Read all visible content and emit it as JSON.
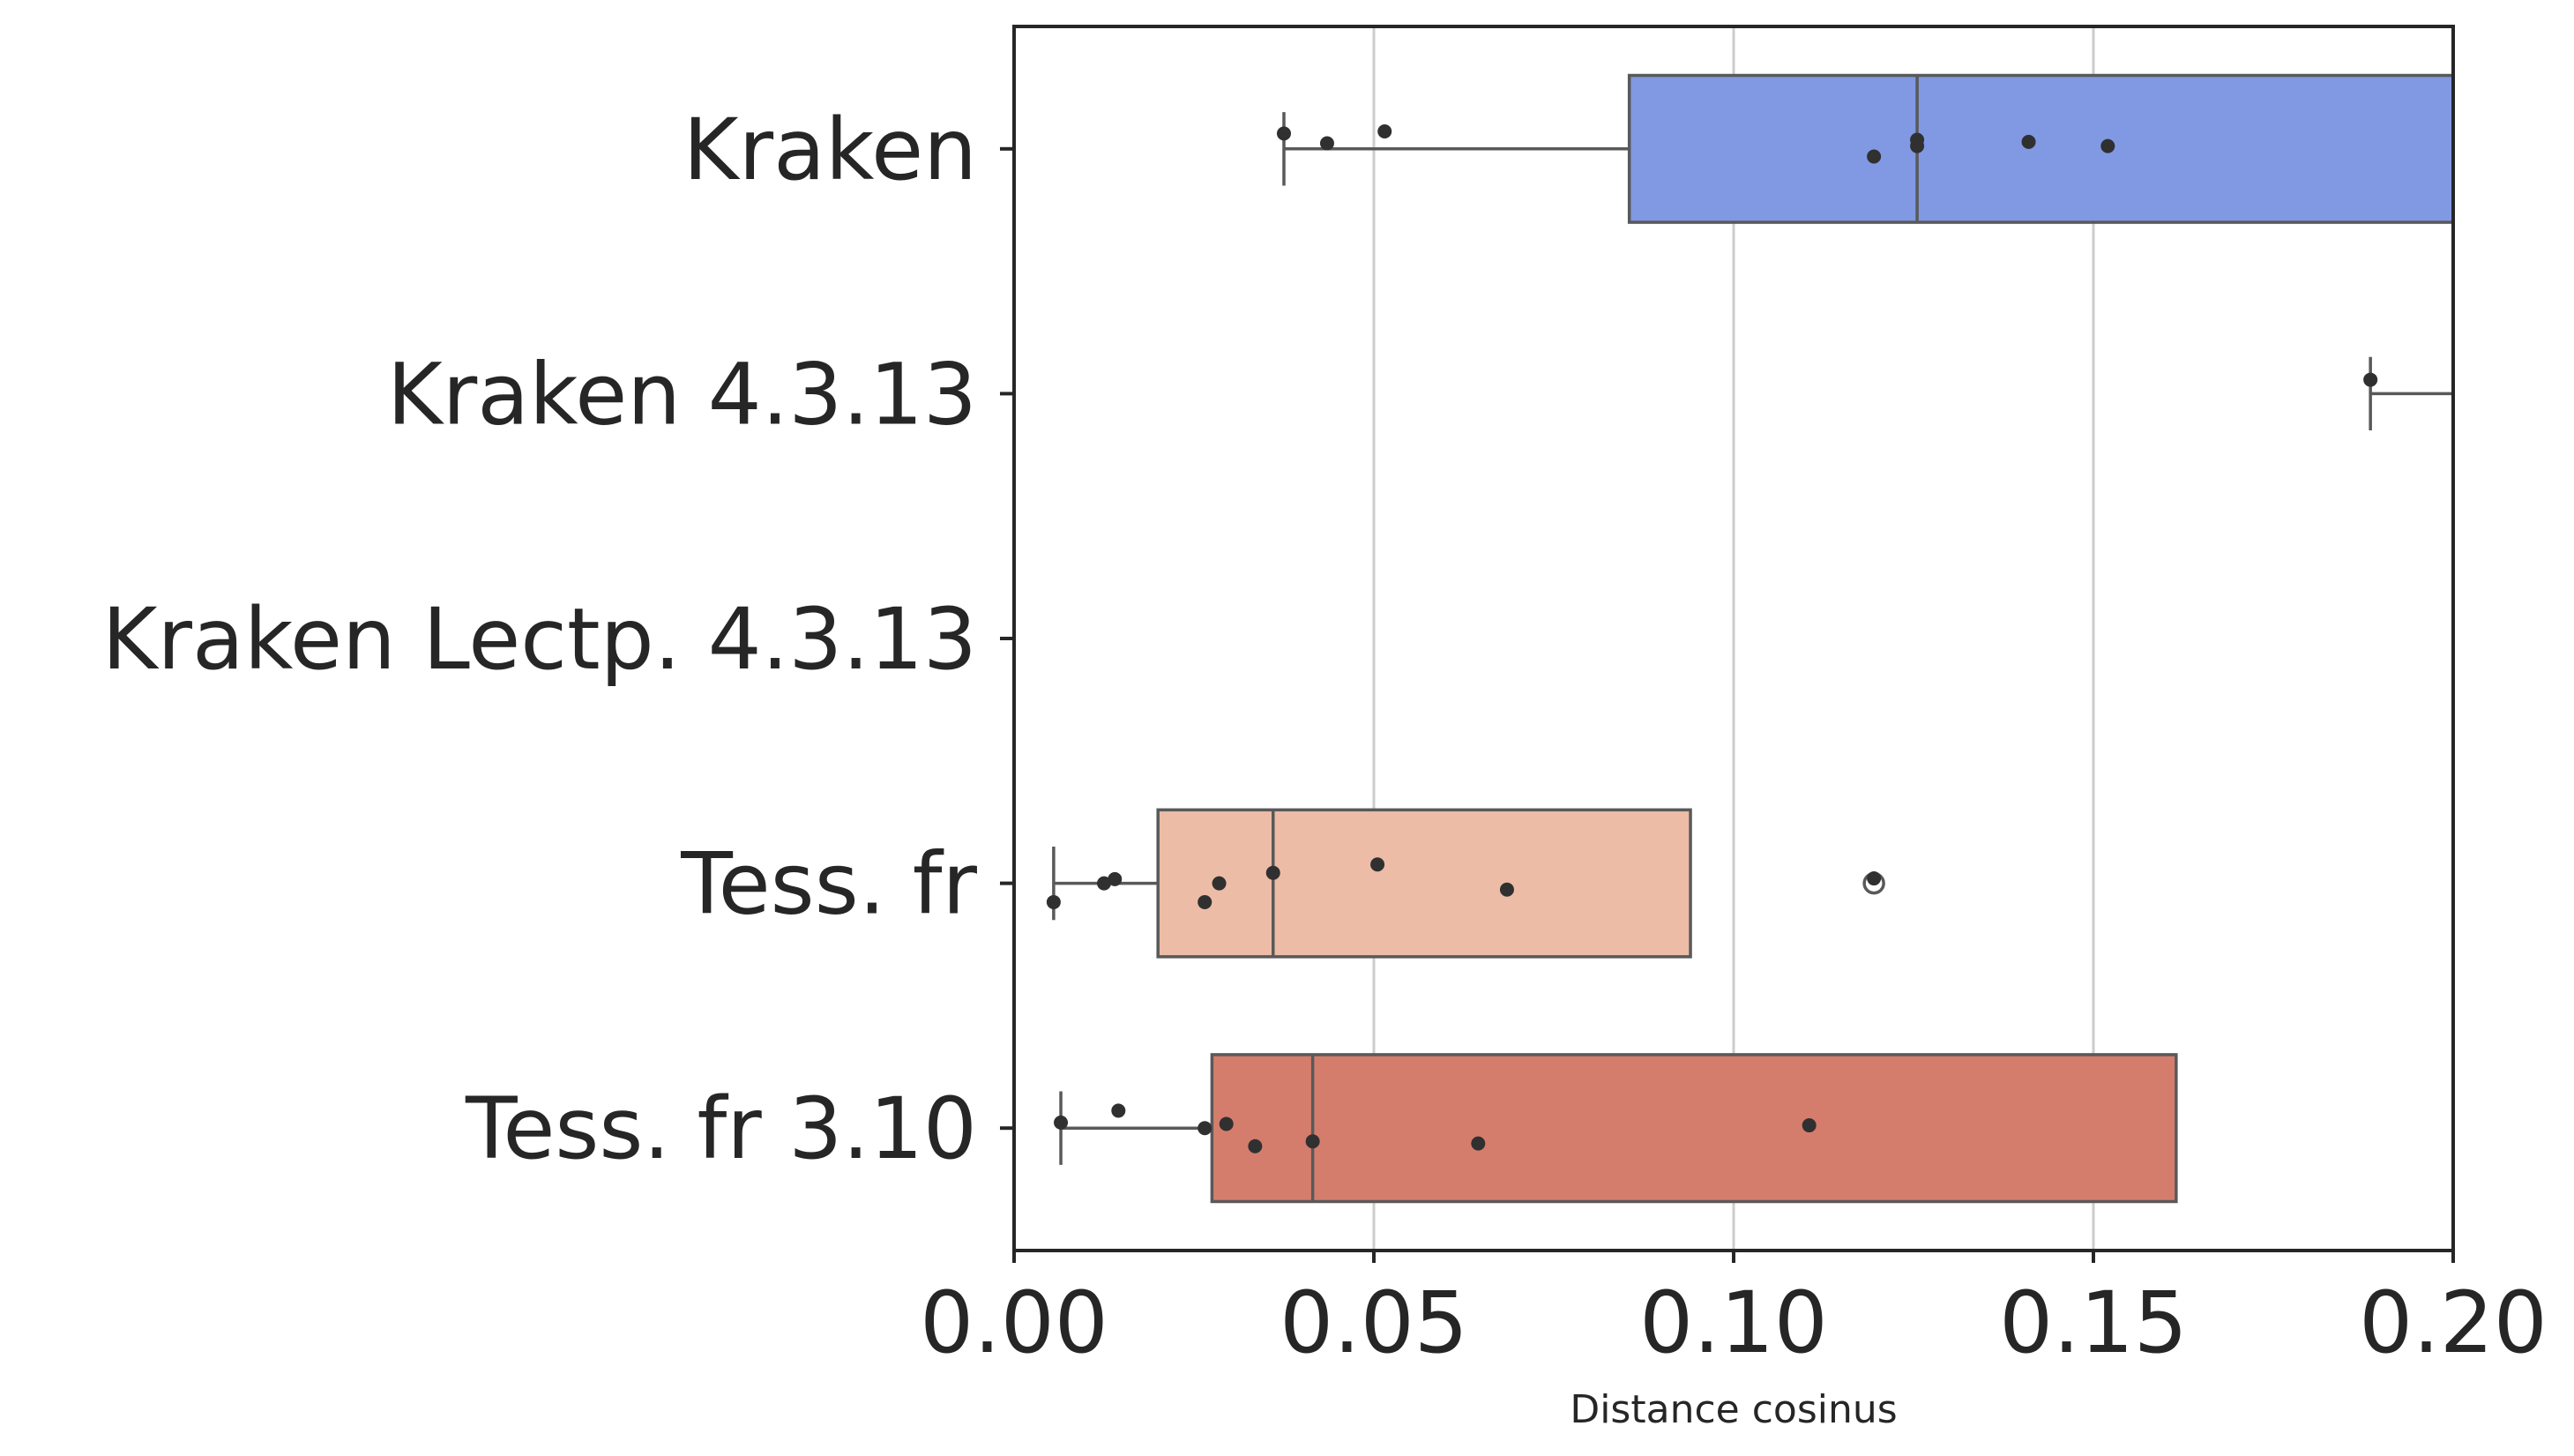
{
  "chart_data": {
    "type": "box",
    "orientation": "horizontal",
    "xlabel": "Distance cosinus",
    "ylabel": "",
    "xlim": [
      0,
      0.2
    ],
    "xticks": [
      0,
      0.05,
      0.1,
      0.15,
      0.2
    ],
    "xtick_labels": [
      "0.00",
      "0.05",
      "0.10",
      "0.15",
      "0.20"
    ],
    "grid": "vertical",
    "categories": [
      "Kraken",
      "Kraken 4.3.13",
      "Kraken Lectp. 4.3.13",
      "Tess. fr",
      "Tess. fr 3.10"
    ],
    "boxes": [
      {
        "category": "Kraken",
        "color": "#8099e2",
        "whisker_low": 0.0375,
        "q1": 0.0855,
        "median": 0.1255,
        "q3": 0.205,
        "points": [
          {
            "x": 0.0375,
            "j": -0.22
          },
          {
            "x": 0.0435,
            "j": -0.08
          },
          {
            "x": 0.0515,
            "j": -0.25
          },
          {
            "x": 0.1195,
            "j": 0.11
          },
          {
            "x": 0.1255,
            "j": -0.13
          },
          {
            "x": 0.1255,
            "j": -0.04
          },
          {
            "x": 0.141,
            "j": -0.1
          },
          {
            "x": 0.152,
            "j": -0.04
          }
        ],
        "outliers": []
      },
      {
        "category": "Kraken 4.3.13",
        "color": "#9ebcf5",
        "whisker_low": 0.1885,
        "q1": 0.205,
        "median": 0.205,
        "q3": 0.205,
        "points": [
          {
            "x": 0.1885,
            "j": -0.2
          }
        ],
        "outliers": []
      },
      {
        "category": "Kraken Lectp. 4.3.13",
        "color": "#dddddd",
        "points": [],
        "outliers": []
      },
      {
        "category": "Tess. fr",
        "color": "#ecbca7",
        "whisker_low": 0.0055,
        "q1": 0.02,
        "median": 0.036,
        "q3": 0.094,
        "whisker_high": 0.094,
        "points": [
          {
            "x": 0.0055,
            "j": 0.27
          },
          {
            "x": 0.0125,
            "j": 0.0
          },
          {
            "x": 0.014,
            "j": -0.06
          },
          {
            "x": 0.0265,
            "j": 0.27
          },
          {
            "x": 0.0285,
            "j": 0.0
          },
          {
            "x": 0.036,
            "j": -0.15
          },
          {
            "x": 0.0505,
            "j": -0.27
          },
          {
            "x": 0.0685,
            "j": 0.09
          },
          {
            "x": 0.1195,
            "j": -0.07
          }
        ],
        "outliers": [
          0.1195
        ]
      },
      {
        "category": "Tess. fr 3.10",
        "color": "#d57d6d",
        "whisker_low": 0.0065,
        "q1": 0.0275,
        "median": 0.0415,
        "q3": 0.1615,
        "whisker_high": 0.1615,
        "points": [
          {
            "x": 0.0065,
            "j": -0.08
          },
          {
            "x": 0.0145,
            "j": -0.25
          },
          {
            "x": 0.0265,
            "j": 0.0
          },
          {
            "x": 0.0295,
            "j": -0.06
          },
          {
            "x": 0.0335,
            "j": 0.26
          },
          {
            "x": 0.0415,
            "j": 0.19
          },
          {
            "x": 0.0645,
            "j": 0.22
          },
          {
            "x": 0.1105,
            "j": -0.04
          }
        ],
        "outliers": []
      }
    ]
  }
}
